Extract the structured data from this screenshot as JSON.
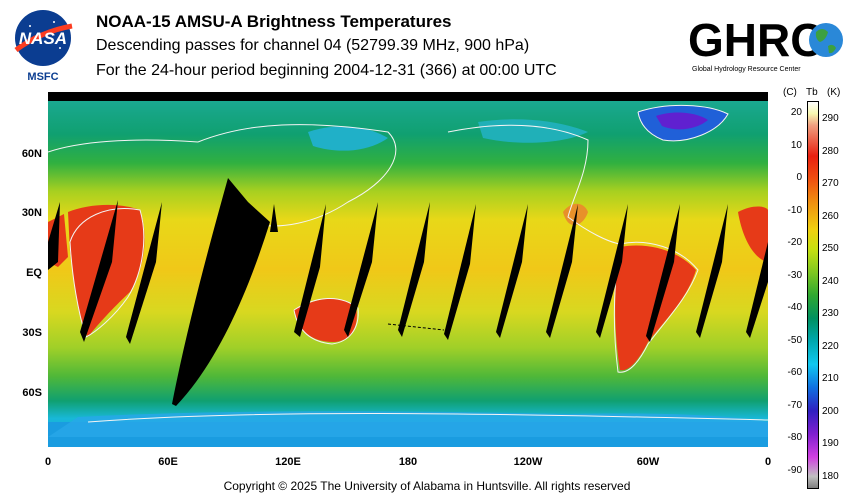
{
  "header": {
    "title": "NOAA-15 AMSU-A Brightness Temperatures",
    "line1": "Descending passes for channel 04 (52799.39 MHz, 900 hPa)",
    "line2": "For the 24-hour period beginning 2004-12-31 (366) at 00:00 UTC"
  },
  "logos": {
    "nasa": {
      "wordmark": "NASA",
      "label": "MSFC"
    },
    "ghrc": {
      "wordmark": "GHRC",
      "tagline": "Global Hydrology Resource Center"
    }
  },
  "map": {
    "lat_labels": [
      "60N",
      "30N",
      "EQ",
      "30S",
      "60S"
    ],
    "lon_labels": [
      "0",
      "60E",
      "120E",
      "180",
      "120W",
      "60W",
      "0"
    ],
    "date_line_marker": "←",
    "colors": {
      "hot": "#e83818",
      "warm": "#f0d018",
      "mild": "#70c020",
      "cool": "#009878",
      "cold": "#18b0e8",
      "frigid": "#5018c8",
      "gap": "#000000"
    }
  },
  "colorbar": {
    "header_c": "(C)",
    "header_tb": "Tb",
    "header_k": "(K)",
    "celsius_ticks": [
      "20",
      "10",
      "0",
      "-10",
      "-20",
      "-30",
      "-40",
      "-50",
      "-60",
      "-70",
      "-80",
      "-90"
    ],
    "kelvin_ticks": [
      "290",
      "280",
      "270",
      "260",
      "250",
      "240",
      "230",
      "220",
      "210",
      "200",
      "190",
      "180"
    ],
    "range_k": [
      180,
      295
    ]
  },
  "footer": {
    "copyright": "Copyright © 2025 The University of Alabama in Huntsville.  All rights reserved"
  }
}
